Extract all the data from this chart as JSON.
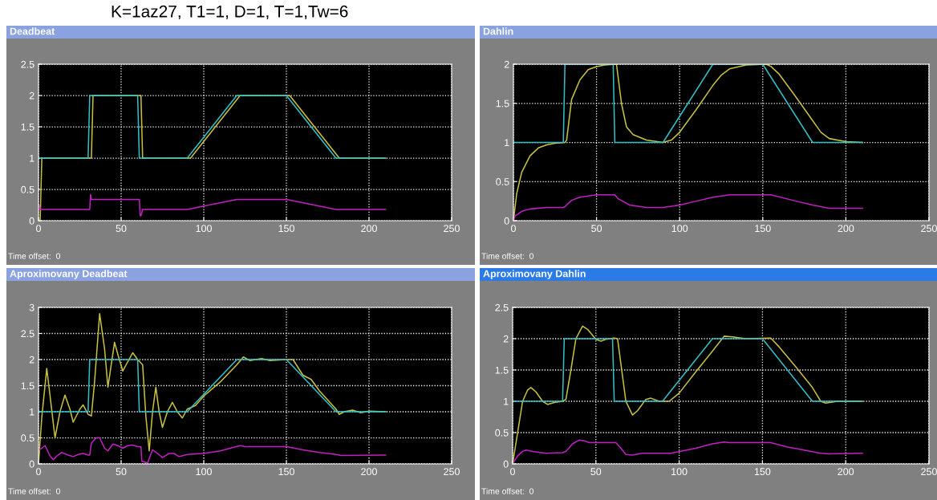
{
  "chart_data": [
    {
      "type": "line",
      "title": "Deadbeat",
      "annotations": [
        "K=1az27, T1=1, D=1, T=1,Tw=6",
        "Time offset:  0"
      ],
      "xlim": [
        0,
        250
      ],
      "xticks": [
        0,
        50,
        100,
        150,
        200,
        250
      ],
      "ylim": [
        0,
        2.5
      ],
      "yticks": [
        0,
        0.5,
        1,
        1.5,
        2,
        2.5
      ],
      "grid": true,
      "series": [
        {
          "color": "#c8c040",
          "x": [
            0,
            1,
            2,
            32,
            33,
            62,
            63,
            92,
            122,
            152,
            182,
            210
          ],
          "values": [
            0,
            0,
            1,
            1,
            2,
            2,
            1,
            1,
            2,
            2,
            1,
            1
          ]
        },
        {
          "color": "#30c0c8",
          "x": [
            0,
            30,
            31,
            60,
            61,
            90,
            120,
            150,
            180,
            210
          ],
          "values": [
            1,
            1,
            2,
            2,
            1,
            1,
            2,
            2,
            1,
            1
          ]
        },
        {
          "color": "#c020c0",
          "x": [
            0,
            0.5,
            1,
            31,
            31.5,
            32,
            61,
            61.5,
            62,
            63,
            90,
            120,
            150,
            180,
            210
          ],
          "values": [
            0.25,
            0.25,
            0.18,
            0.18,
            0.42,
            0.34,
            0.34,
            0.08,
            0.08,
            0.18,
            0.18,
            0.34,
            0.34,
            0.18,
            0.18
          ]
        }
      ]
    },
    {
      "type": "line",
      "title": "Dahlin",
      "annotations": [
        "Time offset:  0"
      ],
      "xlim": [
        0,
        250
      ],
      "xticks": [
        0,
        50,
        100,
        150,
        200,
        250
      ],
      "ylim": [
        0,
        2
      ],
      "yticks": [
        0,
        0.5,
        1,
        1.5,
        2
      ],
      "grid": true,
      "series": [
        {
          "color": "#c8c040",
          "x": [
            0,
            2,
            5,
            10,
            15,
            20,
            25,
            31,
            32,
            35,
            40,
            45,
            50,
            55,
            61,
            62,
            65,
            68,
            72,
            80,
            90,
            95,
            100,
            110,
            120,
            125,
            130,
            140,
            152,
            155,
            160,
            170,
            180,
            185,
            190,
            200,
            210
          ],
          "values": [
            0,
            0.35,
            0.62,
            0.83,
            0.93,
            0.97,
            0.99,
            1,
            1.03,
            1.55,
            1.8,
            1.93,
            1.97,
            1.99,
            2,
            2,
            1.5,
            1.2,
            1.1,
            1.03,
            1,
            1.03,
            1.13,
            1.42,
            1.73,
            1.86,
            1.94,
            1.99,
            2,
            1.97,
            1.87,
            1.58,
            1.28,
            1.13,
            1.05,
            1.01,
            1
          ]
        },
        {
          "color": "#30c0c8",
          "x": [
            0,
            30,
            31,
            60,
            61,
            90,
            120,
            150,
            180,
            210
          ],
          "values": [
            1,
            1,
            2,
            2,
            1,
            1,
            2,
            2,
            1,
            1
          ]
        },
        {
          "color": "#c020c0",
          "x": [
            0,
            1,
            5,
            10,
            20,
            30,
            31,
            35,
            40,
            50,
            61,
            63,
            70,
            80,
            90,
            100,
            110,
            120,
            130,
            155,
            170,
            180,
            190,
            210
          ],
          "values": [
            0,
            0.06,
            0.12,
            0.15,
            0.17,
            0.17,
            0.18,
            0.26,
            0.3,
            0.33,
            0.33,
            0.28,
            0.2,
            0.17,
            0.17,
            0.2,
            0.25,
            0.3,
            0.33,
            0.33,
            0.25,
            0.2,
            0.16,
            0.16
          ]
        }
      ]
    },
    {
      "type": "line",
      "title": "Aproximovany Deadbeat",
      "annotations": [
        "Time offset:  0"
      ],
      "xlim": [
        0,
        250
      ],
      "xticks": [
        0,
        50,
        100,
        150,
        200,
        250
      ],
      "ylim": [
        0,
        3
      ],
      "yticks": [
        0,
        0.5,
        1,
        1.5,
        2,
        2.5,
        3
      ],
      "grid": true,
      "series": [
        {
          "color": "#c8c040",
          "x": [
            0,
            2,
            5,
            7,
            10,
            13,
            16,
            19,
            21,
            25,
            27,
            30,
            32,
            34,
            37,
            40,
            42,
            46,
            48,
            51,
            53,
            57,
            60,
            63,
            65,
            67,
            69,
            71,
            73,
            75,
            78,
            81,
            84,
            87,
            90,
            95,
            100,
            110,
            120,
            124,
            128,
            135,
            140,
            150,
            154,
            160,
            165,
            170,
            180,
            182,
            185,
            190,
            195,
            200,
            210
          ],
          "values": [
            0,
            0.9,
            1.83,
            1.3,
            0.5,
            1.0,
            1.32,
            1.05,
            0.8,
            1.05,
            1.13,
            0.95,
            0.92,
            1.6,
            2.88,
            2.2,
            1.47,
            2.33,
            2.1,
            1.78,
            1.9,
            2.13,
            2.0,
            1.9,
            0.9,
            0.25,
            1.0,
            1.47,
            1.0,
            0.7,
            1.0,
            1.18,
            1.0,
            0.88,
            1.05,
            1.12,
            1.3,
            1.57,
            1.9,
            2.05,
            1.98,
            2.02,
            1.98,
            2.0,
            2.0,
            1.7,
            1.62,
            1.4,
            1.05,
            0.95,
            1.0,
            1.03,
            0.98,
            1.01,
            1.0
          ]
        },
        {
          "color": "#30c0c8",
          "x": [
            0,
            30,
            31,
            60,
            61,
            90,
            120,
            150,
            180,
            210
          ],
          "values": [
            1,
            1,
            2,
            2,
            1,
            1,
            2,
            2,
            1,
            1
          ]
        },
        {
          "color": "#c020c0",
          "x": [
            0,
            1,
            2,
            4,
            7,
            9,
            11,
            14,
            18,
            21,
            24,
            27,
            30,
            31,
            32,
            35,
            37,
            40,
            42,
            45,
            48,
            51,
            54,
            57,
            60,
            62,
            62.5,
            66,
            69,
            72,
            75,
            79,
            82,
            85,
            90,
            100,
            110,
            122,
            125,
            150,
            160,
            170,
            180,
            183,
            210
          ],
          "values": [
            0.28,
            0.28,
            0.3,
            0.35,
            0.15,
            0.08,
            0.15,
            0.22,
            0.17,
            0.14,
            0.18,
            0.2,
            0.17,
            0.17,
            0.4,
            0.5,
            0.5,
            0.3,
            0.25,
            0.38,
            0.35,
            0.3,
            0.35,
            0.36,
            0.33,
            0.33,
            0.05,
            0.02,
            0.27,
            0.2,
            0.12,
            0.2,
            0.2,
            0.14,
            0.18,
            0.2,
            0.25,
            0.35,
            0.33,
            0.33,
            0.27,
            0.22,
            0.18,
            0.16,
            0.17
          ]
        }
      ]
    },
    {
      "type": "line",
      "title": "Aproximovany Dahlin",
      "annotations": [
        "Time offset:  0"
      ],
      "xlim": [
        0,
        250
      ],
      "xticks": [
        0,
        50,
        100,
        150,
        200,
        250
      ],
      "ylim": [
        0,
        2.5
      ],
      "yticks": [
        0,
        0.5,
        1,
        1.5,
        2,
        2.5
      ],
      "grid": true,
      "series": [
        {
          "color": "#c8c040",
          "x": [
            0,
            3,
            6,
            9,
            11,
            14,
            18,
            21,
            25,
            30,
            32,
            35,
            38,
            42,
            45,
            50,
            53,
            56,
            61,
            63,
            65,
            68,
            72,
            75,
            80,
            83,
            88,
            94,
            100,
            110,
            120,
            127,
            132,
            140,
            155,
            160,
            170,
            180,
            185,
            188,
            195,
            210
          ],
          "values": [
            0,
            0.5,
            1.0,
            1.18,
            1.22,
            1.15,
            1.0,
            0.95,
            0.98,
            1.0,
            1.03,
            1.5,
            2.0,
            2.2,
            2.15,
            1.99,
            1.96,
            1.99,
            2.01,
            2.0,
            1.6,
            1.0,
            0.78,
            0.85,
            1.03,
            1.05,
            1.0,
            1.0,
            1.13,
            1.47,
            1.8,
            2.04,
            2.03,
            2.0,
            2.01,
            1.87,
            1.55,
            1.22,
            1.0,
            0.97,
            1.0,
            1.0
          ]
        },
        {
          "color": "#30c0c8",
          "x": [
            0,
            30,
            31,
            60,
            61,
            90,
            120,
            150,
            180,
            210
          ],
          "values": [
            1,
            1,
            2,
            2,
            1,
            1,
            2,
            2,
            1,
            1
          ]
        },
        {
          "color": "#c020c0",
          "x": [
            0,
            3,
            6,
            8,
            12,
            20,
            30,
            32,
            36,
            40,
            43,
            46,
            62,
            65,
            68,
            72,
            78,
            95,
            110,
            120,
            127,
            130,
            155,
            165,
            175,
            185,
            190,
            210
          ],
          "values": [
            0,
            0.13,
            0.2,
            0.22,
            0.2,
            0.17,
            0.18,
            0.2,
            0.32,
            0.38,
            0.37,
            0.34,
            0.34,
            0.25,
            0.15,
            0.14,
            0.17,
            0.17,
            0.25,
            0.32,
            0.35,
            0.34,
            0.34,
            0.27,
            0.22,
            0.17,
            0.16,
            0.17
          ]
        }
      ]
    }
  ]
}
